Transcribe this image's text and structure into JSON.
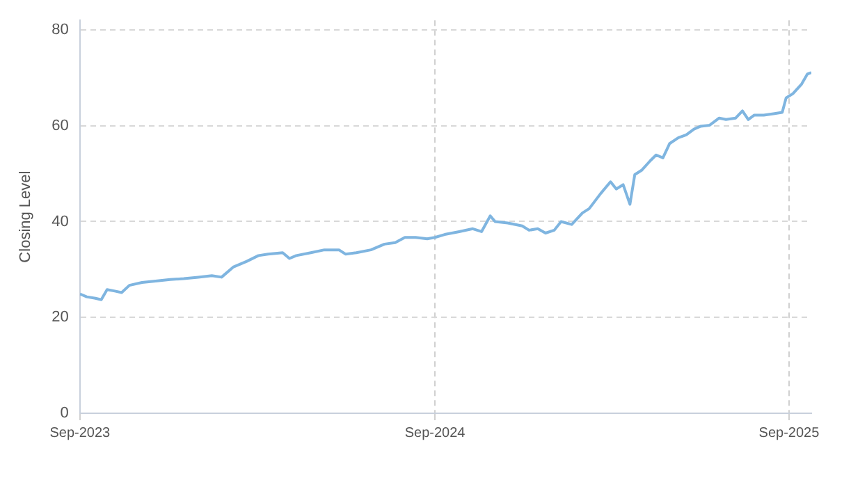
{
  "chart_data": {
    "type": "line",
    "ylabel": "Closing Level",
    "x": [
      "2023-09-01",
      "2023-09-08",
      "2023-09-17",
      "2023-09-23",
      "2023-09-29",
      "2023-10-07",
      "2023-10-14",
      "2023-10-22",
      "2023-11-04",
      "2023-11-18",
      "2023-12-03",
      "2023-12-17",
      "2024-01-01",
      "2024-01-15",
      "2024-01-25",
      "2024-02-06",
      "2024-02-20",
      "2024-03-03",
      "2024-03-13",
      "2024-03-28",
      "2024-04-04",
      "2024-04-11",
      "2024-04-26",
      "2024-05-10",
      "2024-05-25",
      "2024-06-01",
      "2024-06-12",
      "2024-06-27",
      "2024-07-11",
      "2024-07-22",
      "2024-08-01",
      "2024-08-12",
      "2024-08-24",
      "2024-09-01",
      "2024-09-11",
      "2024-09-26",
      "2024-10-10",
      "2024-10-19",
      "2024-10-28",
      "2024-11-02",
      "2024-11-15",
      "2024-11-30",
      "2024-12-07",
      "2024-12-16",
      "2024-12-24",
      "2025-01-02",
      "2025-01-09",
      "2025-01-20",
      "2025-01-31",
      "2025-02-07",
      "2025-02-19",
      "2025-03-01",
      "2025-03-07",
      "2025-03-14",
      "2025-03-21",
      "2025-03-26",
      "2025-04-02",
      "2025-04-11",
      "2025-04-17",
      "2025-04-24",
      "2025-05-01",
      "2025-05-10",
      "2025-05-18",
      "2025-05-26",
      "2025-06-02",
      "2025-06-11",
      "2025-06-21",
      "2025-06-28",
      "2025-07-08",
      "2025-07-15",
      "2025-07-21",
      "2025-07-27",
      "2025-08-06",
      "2025-08-16",
      "2025-08-25",
      "2025-08-29",
      "2025-09-05",
      "2025-09-14",
      "2025-09-20",
      "2025-09-24"
    ],
    "series": [
      {
        "color": "#7fb5e0",
        "values": [
          24.9,
          24.3,
          24.0,
          23.7,
          25.8,
          25.5,
          25.2,
          26.7,
          27.3,
          27.6,
          27.9,
          28.1,
          28.4,
          28.7,
          28.4,
          30.5,
          31.7,
          32.9,
          33.2,
          33.5,
          32.3,
          32.9,
          33.5,
          34.1,
          34.1,
          33.2,
          33.5,
          34.1,
          35.3,
          35.6,
          36.7,
          36.7,
          36.4,
          36.7,
          37.3,
          37.9,
          38.5,
          37.9,
          41.2,
          40.0,
          39.7,
          39.1,
          38.2,
          38.5,
          37.6,
          38.2,
          40.0,
          39.4,
          41.8,
          42.7,
          45.9,
          48.3,
          46.8,
          47.7,
          43.6,
          49.8,
          50.7,
          52.7,
          53.9,
          53.3,
          56.3,
          57.5,
          58.1,
          59.3,
          59.9,
          60.1,
          61.6,
          61.3,
          61.6,
          63.1,
          61.3,
          62.2,
          62.2,
          62.5,
          62.8,
          65.8,
          66.7,
          68.7,
          70.8,
          71.1
        ]
      }
    ],
    "xlim": [
      "2023-09-01",
      "2025-09-24"
    ],
    "xticks": [
      {
        "value": "2023-09-01",
        "label": "Sep-2023"
      },
      {
        "value": "2024-09-01",
        "label": "Sep-2024"
      },
      {
        "value": "2025-09-01",
        "label": "Sep-2025"
      }
    ],
    "ylim": [
      0,
      82
    ],
    "yticks": [
      0,
      20,
      40,
      60,
      80
    ],
    "grid": true,
    "legend": false,
    "marker": "none",
    "line_style": "solid"
  }
}
